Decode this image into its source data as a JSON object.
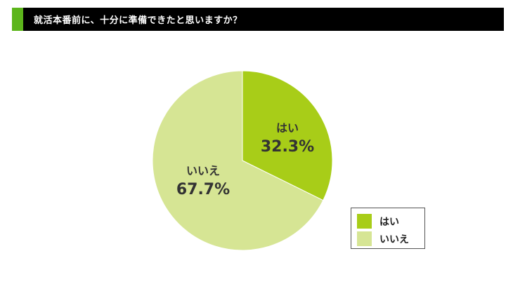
{
  "title": "就活本番前に、十分に準備できたと思いますか？",
  "colors": {
    "title_bg": "#000000",
    "title_accent": "#5cb51b",
    "title_text": "#ffffff",
    "pie_stroke": "#ffffff",
    "label_text": "#333333"
  },
  "chart_data": {
    "type": "pie",
    "title": "就活本番前に、十分に準備できたと思いますか？",
    "slices": [
      {
        "label": "はい",
        "value": 32.3,
        "value_label": "32.3%",
        "color": "#a8cd18"
      },
      {
        "label": "いいえ",
        "value": 67.7,
        "value_label": "67.7%",
        "color": "#d6e594"
      }
    ],
    "legend": {
      "position": "bottom-right",
      "entries": [
        "はい",
        "いいえ"
      ]
    }
  }
}
